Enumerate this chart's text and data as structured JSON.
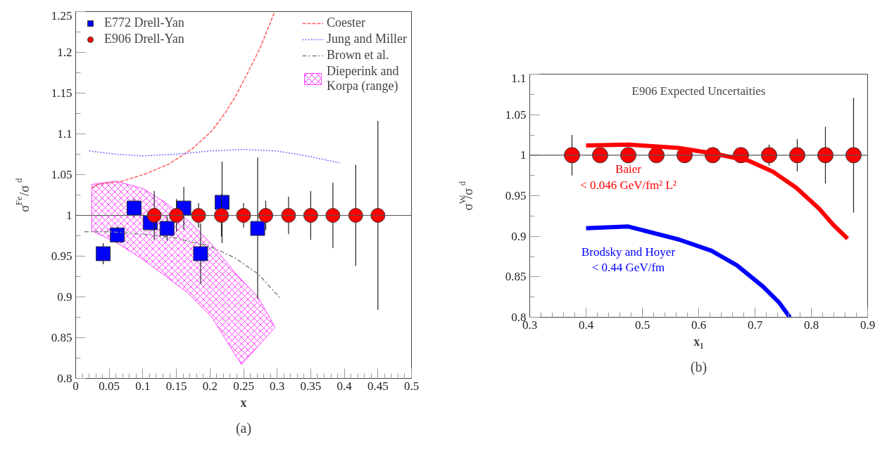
{
  "chart_data": [
    {
      "type": "scatter",
      "xlabel": "x",
      "ylabel": "σ$^{Fe}$/σ$^{d}$",
      "xlim": [
        0,
        0.5
      ],
      "ylim": [
        0.8,
        1.25
      ],
      "xticks": [
        0,
        0.05,
        0.1,
        0.15,
        0.2,
        0.25,
        0.3,
        0.35,
        0.4,
        0.45,
        0.5
      ],
      "yticks": [
        0.8,
        0.85,
        0.9,
        0.95,
        1,
        1.05,
        1.1,
        1.15,
        1.2,
        1.25
      ],
      "grid": false,
      "legend": "top",
      "annotations": [
        "(a)"
      ],
      "ref_lines": [
        {
          "axis": "y",
          "value": 1,
          "color": "#555555"
        }
      ],
      "series": [
        {
          "name": "E772 Drell-Yan",
          "marker": "square",
          "color": "#0000ff",
          "x": [
            0.041,
            0.062,
            0.087,
            0.111,
            0.136,
            0.161,
            0.186,
            0.218,
            0.271
          ],
          "values": [
            0.953,
            0.976,
            1.009,
            0.991,
            0.984,
            1.009,
            0.953,
            1.016,
            0.984
          ],
          "errors": [
            0.013,
            0.01,
            0.011,
            0.01,
            0.015,
            0.026,
            0.037,
            0.05,
            0.087
          ]
        },
        {
          "name": "E906 Drell-Yan",
          "marker": "circle",
          "color": "#ff0000",
          "x": [
            0.117,
            0.15,
            0.183,
            0.217,
            0.25,
            0.283,
            0.317,
            0.35,
            0.383,
            0.417,
            0.45
          ],
          "values": [
            1,
            1,
            1,
            1,
            1,
            1,
            1,
            1,
            1,
            1,
            1
          ],
          "errors": [
            0.03,
            0.02,
            0.015,
            0.026,
            0.015,
            0.018,
            0.023,
            0.03,
            0.04,
            0.062,
            0.116
          ]
        },
        {
          "name": "Coester",
          "type": "line",
          "line_style": "dashed",
          "color": "#ff5a5a",
          "x": [
            0.024,
            0.034,
            0.069,
            0.104,
            0.139,
            0.174,
            0.202,
            0.223,
            0.24,
            0.258,
            0.275,
            0.296
          ],
          "values": [
            1.034,
            1.038,
            1.042,
            1.051,
            1.063,
            1.082,
            1.103,
            1.126,
            1.149,
            1.178,
            1.206,
            1.249
          ]
        },
        {
          "name": "Jung and Miller",
          "type": "line",
          "line_style": "dotted",
          "color": "#6f6fff",
          "x": [
            0.02,
            0.06,
            0.1,
            0.15,
            0.2,
            0.25,
            0.3,
            0.35,
            0.395
          ],
          "values": [
            1.079,
            1.075,
            1.073,
            1.075,
            1.079,
            1.081,
            1.079,
            1.072,
            1.064
          ]
        },
        {
          "name": "Brown et al.",
          "type": "line",
          "line_style": "dashdot",
          "color": "#808080",
          "x": [
            0.013,
            0.05,
            0.1,
            0.15,
            0.2,
            0.237,
            0.272,
            0.305
          ],
          "values": [
            0.98,
            0.98,
            0.977,
            0.972,
            0.962,
            0.948,
            0.928,
            0.898
          ]
        },
        {
          "name": "Dieperink and\nKorpa (range)",
          "type": "area",
          "color": "#ff40ff",
          "x": [
            0.024,
            0.06,
            0.1,
            0.133,
            0.167,
            0.202,
            0.237,
            0.247,
            0.272,
            0.296
          ],
          "values": [
            null,
            null,
            null,
            null,
            null,
            null,
            null,
            null,
            null,
            null
          ],
          "upper": [
            1.038,
            1.042,
            1.033,
            1.016,
            0.994,
            0.965,
            0.93,
            0.921,
            0.899,
            0.864
          ],
          "lower": [
            0.981,
            0.967,
            0.946,
            0.926,
            0.905,
            0.876,
            0.83,
            0.817,
            0.84,
            0.862
          ]
        }
      ]
    },
    {
      "type": "scatter",
      "title": "E906 Expected Uncertaities",
      "xlabel": "x₁",
      "ylabel": "σ$^{W}$/σ$^{d}$",
      "xlim": [
        0.3,
        0.9
      ],
      "ylim": [
        0.8,
        1.1
      ],
      "xticks": [
        0.3,
        0.4,
        0.5,
        0.6,
        0.7,
        0.8,
        0.9
      ],
      "yticks": [
        0.8,
        0.85,
        0.9,
        0.95,
        1,
        1.05,
        1.1
      ],
      "grid": false,
      "annotations": [
        "(b)"
      ],
      "ref_lines": [
        {
          "axis": "y",
          "value": 1,
          "color": "#555555"
        }
      ],
      "series": [
        {
          "marker": "circle",
          "color": "#ff0000",
          "x": [
            0.375,
            0.425,
            0.475,
            0.525,
            0.575,
            0.625,
            0.675,
            0.725,
            0.775,
            0.825,
            0.875
          ],
          "values": [
            1,
            1,
            1,
            1,
            1,
            1,
            1,
            1,
            1,
            1,
            1
          ],
          "errors": [
            0.025,
            0.008,
            null,
            null,
            null,
            null,
            null,
            0.013,
            0.02,
            0.035,
            0.071
          ]
        },
        {
          "name": "Baier\n< 0.046 GeV/fm² L²",
          "type": "line",
          "line_style": "solid",
          "color": "#ff0000",
          "x": [
            0.4,
            0.475,
            0.5645,
            0.627,
            0.6895,
            0.731,
            0.773,
            0.814,
            0.839,
            0.8645
          ],
          "values": [
            1.012,
            1.013,
            1.009,
            1.002,
            0.993,
            0.98,
            0.96,
            0.934,
            0.914,
            0.897
          ]
        },
        {
          "name": "Brodsky and Hoyer\n< 0.44 GeV/fm",
          "type": "line",
          "line_style": "solid",
          "color": "#0000ff",
          "x": [
            0.4,
            0.475,
            0.5645,
            0.623,
            0.668,
            0.714,
            0.743,
            0.762
          ],
          "values": [
            0.91,
            0.912,
            0.896,
            0.882,
            0.864,
            0.838,
            0.818,
            0.8
          ]
        }
      ]
    }
  ]
}
